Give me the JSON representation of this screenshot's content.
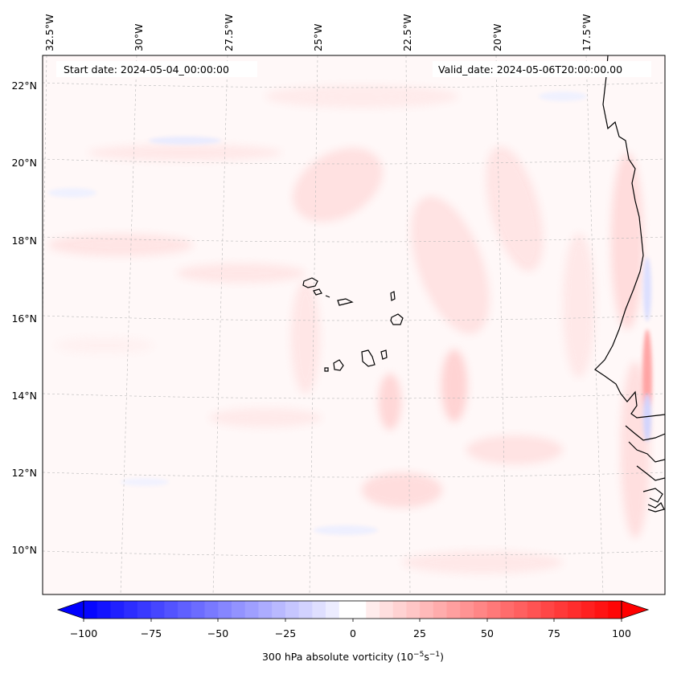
{
  "map": {
    "start_label": "Start date: 2024-05-04_00:00:00",
    "valid_label": "Valid_date: 2024-05-06T20:00:00.00",
    "lat_labels": [
      "22°N",
      "20°N",
      "18°N",
      "16°N",
      "14°N",
      "12°N",
      "10°N"
    ],
    "lon_labels": [
      "32.5°W",
      "30°W",
      "27.5°W",
      "25°W",
      "22.5°W",
      "20°W",
      "17.5°W"
    ],
    "colorbar": {
      "ticks": [
        "−100",
        "−75",
        "−50",
        "−25",
        "0",
        "25",
        "50",
        "75",
        "100"
      ],
      "label_main": "300 hPa absolute vorticity (10",
      "label_exp1": "−5",
      "label_mid": "s",
      "label_exp2": "−1",
      "label_end": ")",
      "min_color": "#0000ff",
      "mid_color": "#ffffff",
      "max_color": "#ff0000"
    },
    "colors": {
      "coastline": "#000000",
      "gridline": "#b0b0b0",
      "field_positive": "#ffd6d6",
      "field_negative": "#e3e6ff"
    }
  }
}
